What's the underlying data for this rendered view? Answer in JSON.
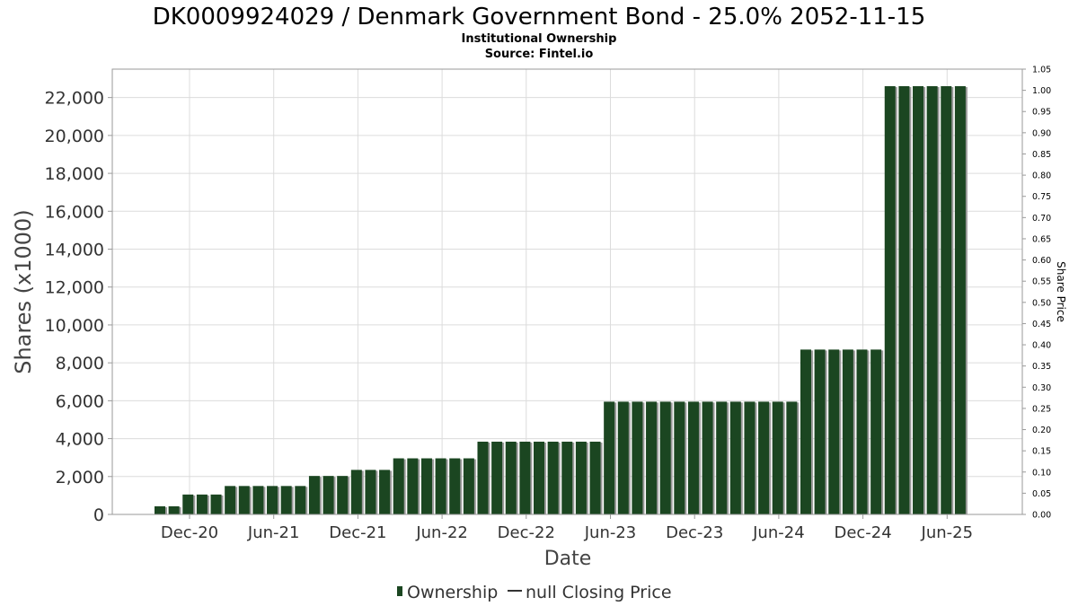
{
  "chart_data": {
    "type": "bar",
    "title": "DK0009924029 / Denmark Government Bond - 25.0% 2052-11-15",
    "subtitle_lines": [
      "Institutional Ownership",
      "Source: Fintel.io"
    ],
    "xlabel": "Date",
    "ylabel": "Shares (x1000)",
    "ylabel_right": "Share Price",
    "ylim": [
      0,
      23500
    ],
    "ylim_right": [
      0,
      1.05
    ],
    "yticks": [
      0,
      2000,
      4000,
      6000,
      8000,
      10000,
      12000,
      14000,
      16000,
      18000,
      20000,
      22000
    ],
    "ytick_labels": [
      "0",
      "2,000",
      "4,000",
      "6,000",
      "8,000",
      "10,000",
      "12,000",
      "14,000",
      "16,000",
      "18,000",
      "20,000",
      "22,000"
    ],
    "yticks_right": [
      "0.00",
      "0.05",
      "0.10",
      "0.15",
      "0.20",
      "0.25",
      "0.30",
      "0.35",
      "0.40",
      "0.45",
      "0.50",
      "0.55",
      "0.60",
      "0.65",
      "0.70",
      "0.75",
      "0.80",
      "0.85",
      "0.90",
      "0.95",
      "1.00",
      "1.05"
    ],
    "x_tick_labels": [
      "Dec-20",
      "Jun-21",
      "Dec-21",
      "Jun-22",
      "Dec-22",
      "Jun-23",
      "Dec-23",
      "Jun-24",
      "Dec-24",
      "Jun-25"
    ],
    "grid": true,
    "legend_position": "bottom",
    "colors": {
      "bar": "#1b4621",
      "bar_shadow": "#9a9a9a",
      "line": "#333333"
    },
    "series": [
      {
        "name": "Ownership",
        "values": [
          430,
          430,
          1050,
          1050,
          1050,
          1500,
          1500,
          1500,
          1500,
          1500,
          1500,
          2030,
          2030,
          2030,
          2350,
          2350,
          2350,
          2960,
          2960,
          2960,
          2960,
          2960,
          2960,
          3840,
          3840,
          3840,
          3840,
          3840,
          3840,
          3840,
          3840,
          3840,
          5950,
          5950,
          5950,
          5950,
          5950,
          5950,
          5950,
          5950,
          5950,
          5950,
          5950,
          5950,
          5950,
          5950,
          8700,
          8700,
          8700,
          8700,
          8700,
          8700,
          22600,
          22600,
          22600,
          22600,
          22600,
          22600
        ]
      },
      {
        "name": "null Closing Price",
        "values": []
      }
    ]
  }
}
